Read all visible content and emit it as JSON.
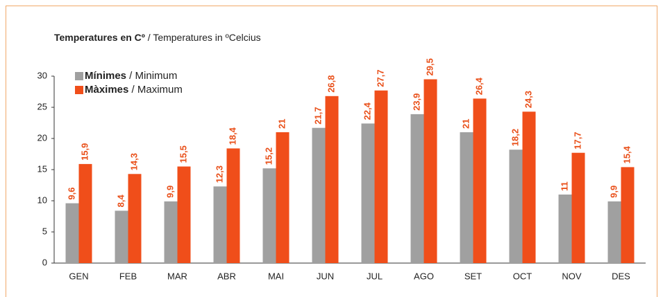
{
  "chart_data": {
    "type": "bar",
    "title": {
      "bold": "Temperatures en Cº",
      "rest": " / Temperatures in ºCelcius"
    },
    "categories": [
      "GEN",
      "FEB",
      "MAR",
      "ABR",
      "MAI",
      "JUN",
      "JUL",
      "AGO",
      "SET",
      "OCT",
      "NOV",
      "DES"
    ],
    "series": [
      {
        "name": "Mínimes / Minimum",
        "color": "#a0a0a0",
        "values": [
          9.6,
          8.4,
          9.9,
          12.3,
          15.2,
          21.7,
          22.4,
          23.9,
          21,
          18.2,
          11,
          9.9
        ],
        "value_labels": [
          "9,6",
          "8,4",
          "9,9",
          "12,3",
          "15,2",
          "21,7",
          "22,4",
          "23,9",
          "21",
          "18,2",
          "11",
          "9,9"
        ]
      },
      {
        "name": "Màximes / Maximum",
        "color": "#f04e1a",
        "values": [
          15.9,
          14.3,
          15.5,
          18.4,
          21,
          26.8,
          27.7,
          29.5,
          26.4,
          24.3,
          17.7,
          15.4
        ],
        "value_labels": [
          "15,9",
          "14,3",
          "15,5",
          "18,4",
          "21",
          "26,8",
          "27,7",
          "29,5",
          "26,4",
          "24,3",
          "17,7",
          "15,4"
        ]
      }
    ],
    "ylim": [
      0,
      30
    ],
    "yticks": [
      0,
      5,
      10,
      15,
      20,
      25,
      30
    ]
  }
}
